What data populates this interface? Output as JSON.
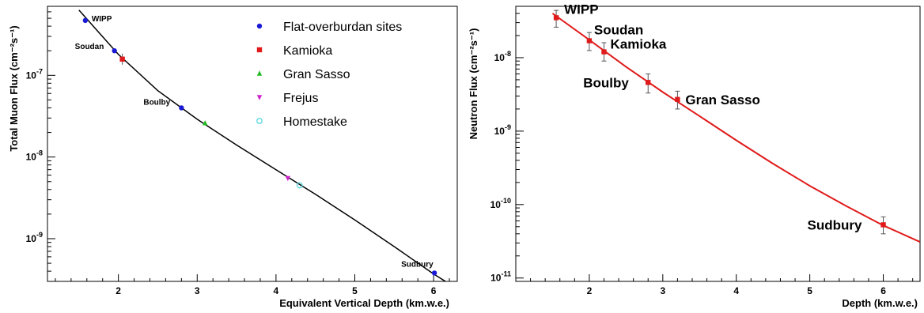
{
  "chart_data": [
    {
      "type": "scatter",
      "title": "",
      "xlabel": "Equivalent Vertical Depth (km.w.e.)",
      "ylabel": "Total Muon Flux (cm⁻²s⁻¹)",
      "xlim": [
        1.1,
        6.3
      ],
      "ylim": [
        3e-10,
        7e-07
      ],
      "yscale": "log",
      "x_ticks": [
        "2",
        "3",
        "4",
        "5",
        "6"
      ],
      "y_ticks": [
        {
          "base": "10",
          "exp": "-9",
          "value": 1e-09
        },
        {
          "base": "10",
          "exp": "-8",
          "value": 1e-08
        },
        {
          "base": "10",
          "exp": "-7",
          "value": 1e-07
        }
      ],
      "legend_position": "top-right",
      "legend": [
        {
          "label": "Flat-overburdan sites",
          "color": "#1a1ad6",
          "marker": "circle"
        },
        {
          "label": "Kamioka",
          "color": "#e01a1a",
          "marker": "square"
        },
        {
          "label": "Gran Sasso",
          "color": "#22bb22",
          "marker": "triangle-up"
        },
        {
          "label": "Frejus",
          "color": "#cc22cc",
          "marker": "triangle-down"
        },
        {
          "label": "Homestake",
          "color": "#55d8e0",
          "marker": "open-circle"
        }
      ],
      "series": [
        {
          "name": "Flat-overburdan sites",
          "points": [
            {
              "label": "WIPP",
              "x": 1.58,
              "y": 4.7e-07
            },
            {
              "label": "Soudan",
              "x": 1.95,
              "y": 2e-07
            },
            {
              "label": "Boulby",
              "x": 2.8,
              "y": 4e-08
            },
            {
              "label": "Sudbury",
              "x": 6.01,
              "y": 3.8e-10
            }
          ]
        },
        {
          "name": "Kamioka",
          "points": [
            {
              "x": 2.05,
              "y": 1.58e-07
            }
          ]
        },
        {
          "name": "Gran Sasso",
          "points": [
            {
              "x": 3.1,
              "y": 2.6e-08
            }
          ]
        },
        {
          "name": "Frejus",
          "points": [
            {
              "x": 4.15,
              "y": 5.5e-09
            }
          ]
        },
        {
          "name": "Homestake",
          "points": [
            {
              "x": 4.3,
              "y": 4.5e-09
            }
          ]
        }
      ],
      "fit_curve": [
        {
          "x": 1.5,
          "y": 6.3e-07
        },
        {
          "x": 2.0,
          "y": 1.8e-07
        },
        {
          "x": 2.5,
          "y": 6.5e-08
        },
        {
          "x": 3.0,
          "y": 2.9e-08
        },
        {
          "x": 3.5,
          "y": 1.4e-08
        },
        {
          "x": 4.0,
          "y": 7e-09
        },
        {
          "x": 4.5,
          "y": 3.5e-09
        },
        {
          "x": 5.0,
          "y": 1.7e-09
        },
        {
          "x": 5.5,
          "y": 8e-10
        },
        {
          "x": 6.0,
          "y": 3.7e-10
        },
        {
          "x": 6.2,
          "y": 2.8e-10
        }
      ]
    },
    {
      "type": "scatter",
      "title": "",
      "xlabel": "Depth (km.w.e.)",
      "ylabel": "Neutron Flux (cm⁻²s⁻¹)",
      "xlim": [
        1.0,
        6.5
      ],
      "ylim": [
        9e-12,
        5e-08
      ],
      "yscale": "log",
      "x_ticks": [
        "2",
        "3",
        "4",
        "5",
        "6"
      ],
      "y_ticks": [
        {
          "base": "10",
          "exp": "-11",
          "value": 1e-11
        },
        {
          "base": "10",
          "exp": "-10",
          "value": 1e-10
        },
        {
          "base": "10",
          "exp": "-9",
          "value": 1e-09
        },
        {
          "base": "10",
          "exp": "-8",
          "value": 1e-08
        }
      ],
      "line_color": "#e01a1a",
      "series": [
        {
          "name": "",
          "points": [
            {
              "label": "WIPP",
              "x": 1.55,
              "y": 3.5e-08,
              "yerr_low": 2.6e-08,
              "yerr_high": 4.4e-08
            },
            {
              "label": "Soudan",
              "x": 2.0,
              "y": 1.7e-08,
              "yerr_low": 1.25e-08,
              "yerr_high": 2.2e-08
            },
            {
              "label": "Kamioka",
              "x": 2.2,
              "y": 1.2e-08,
              "yerr_low": 9e-09,
              "yerr_high": 1.6e-08
            },
            {
              "label": "Boulby",
              "x": 2.8,
              "y": 4.6e-09,
              "yerr_low": 3.3e-09,
              "yerr_high": 6e-09
            },
            {
              "label": "Gran Sasso",
              "x": 3.2,
              "y": 2.7e-09,
              "yerr_low": 2e-09,
              "yerr_high": 3.5e-09
            },
            {
              "label": "Sudbury",
              "x": 6.0,
              "y": 5.3e-11,
              "yerr_low": 4e-11,
              "yerr_high": 6.8e-11
            }
          ]
        }
      ],
      "fit_curve": [
        {
          "x": 1.5,
          "y": 4e-08
        },
        {
          "x": 2.0,
          "y": 1.75e-08
        },
        {
          "x": 2.5,
          "y": 7.5e-09
        },
        {
          "x": 3.0,
          "y": 3.4e-09
        },
        {
          "x": 3.5,
          "y": 1.6e-09
        },
        {
          "x": 4.0,
          "y": 7.5e-10
        },
        {
          "x": 4.5,
          "y": 3.6e-10
        },
        {
          "x": 5.0,
          "y": 1.8e-10
        },
        {
          "x": 5.5,
          "y": 9.5e-11
        },
        {
          "x": 6.0,
          "y": 5.2e-11
        },
        {
          "x": 6.5,
          "y": 3.1e-11
        }
      ]
    }
  ]
}
